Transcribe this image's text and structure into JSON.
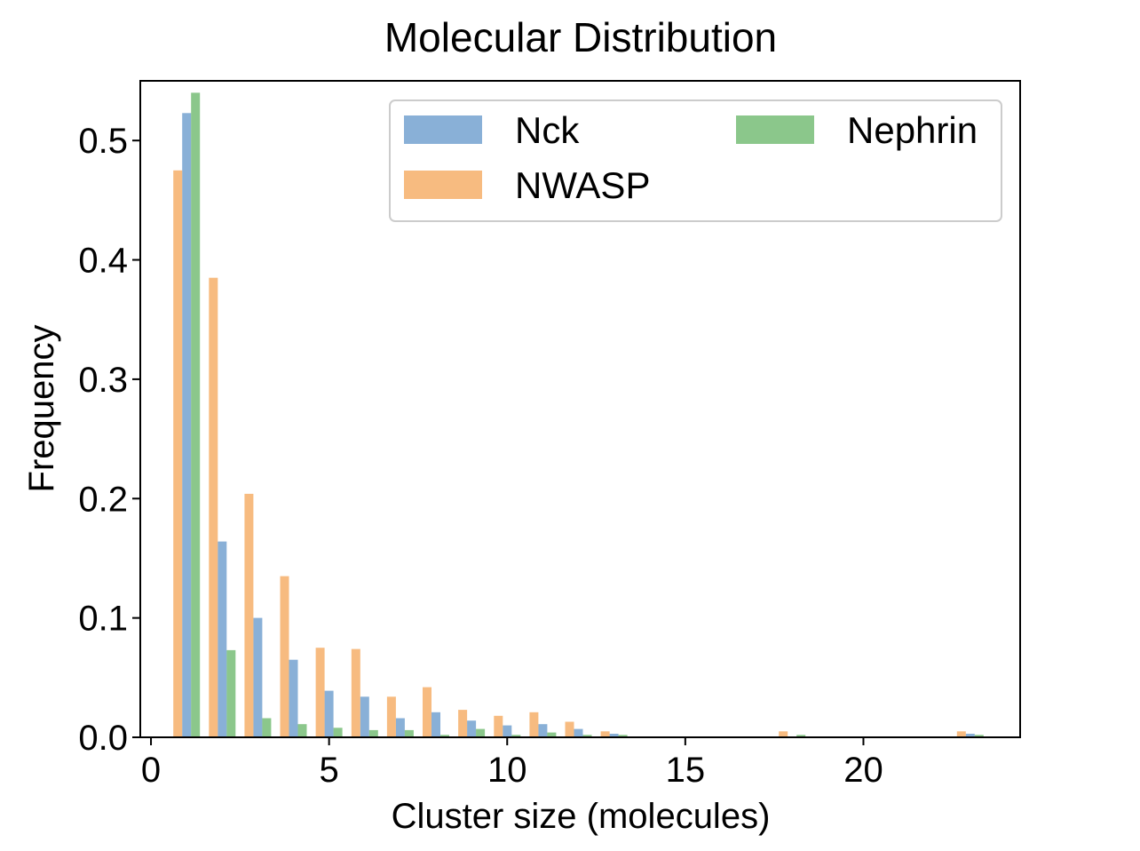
{
  "chart_data": {
    "type": "bar",
    "title": "Molecular Distribution",
    "xlabel": "Cluster size (molecules)",
    "ylabel": "Frequency",
    "xlim": [
      -0.3,
      24.4
    ],
    "ylim": [
      0,
      0.55
    ],
    "xticks": [
      0,
      5,
      10,
      15,
      20
    ],
    "xtick_labels": [
      "0",
      "5",
      "10",
      "15",
      "20"
    ],
    "yticks": [
      0,
      0.1,
      0.2,
      0.3,
      0.4,
      0.5
    ],
    "ytick_labels": [
      "0.0",
      "0.1",
      "0.2",
      "0.3",
      "0.4",
      "0.5"
    ],
    "grid": false,
    "legend": {
      "placement": "top-right",
      "columns": 2
    },
    "bar_alpha": 0.6,
    "series": [
      {
        "name": "Nck",
        "color": "#3b7bbd",
        "x": [
          1,
          2,
          3,
          4,
          5,
          6,
          7,
          8,
          9,
          10,
          11,
          12,
          13,
          23
        ],
        "values": [
          0.523,
          0.164,
          0.1,
          0.065,
          0.039,
          0.034,
          0.016,
          0.021,
          0.014,
          0.01,
          0.011,
          0.007,
          0.003,
          0.003
        ]
      },
      {
        "name": "NWASP",
        "color": "#f28e2b",
        "x": [
          1,
          2,
          3,
          4,
          5,
          6,
          7,
          8,
          9,
          10,
          11,
          12,
          13,
          18,
          23
        ],
        "values": [
          0.475,
          0.385,
          0.204,
          0.135,
          0.075,
          0.074,
          0.034,
          0.042,
          0.023,
          0.018,
          0.021,
          0.013,
          0.005,
          0.005,
          0.005
        ]
      },
      {
        "name": "Nephrin",
        "color": "#3da23d",
        "x": [
          1,
          2,
          3,
          4,
          5,
          6,
          7,
          8,
          9,
          10,
          11,
          12,
          13,
          18,
          23
        ],
        "values": [
          0.54,
          0.073,
          0.016,
          0.011,
          0.008,
          0.006,
          0.006,
          0.002,
          0.007,
          0.002,
          0.004,
          0.002,
          0.002,
          0.002,
          0.002
        ]
      }
    ]
  }
}
